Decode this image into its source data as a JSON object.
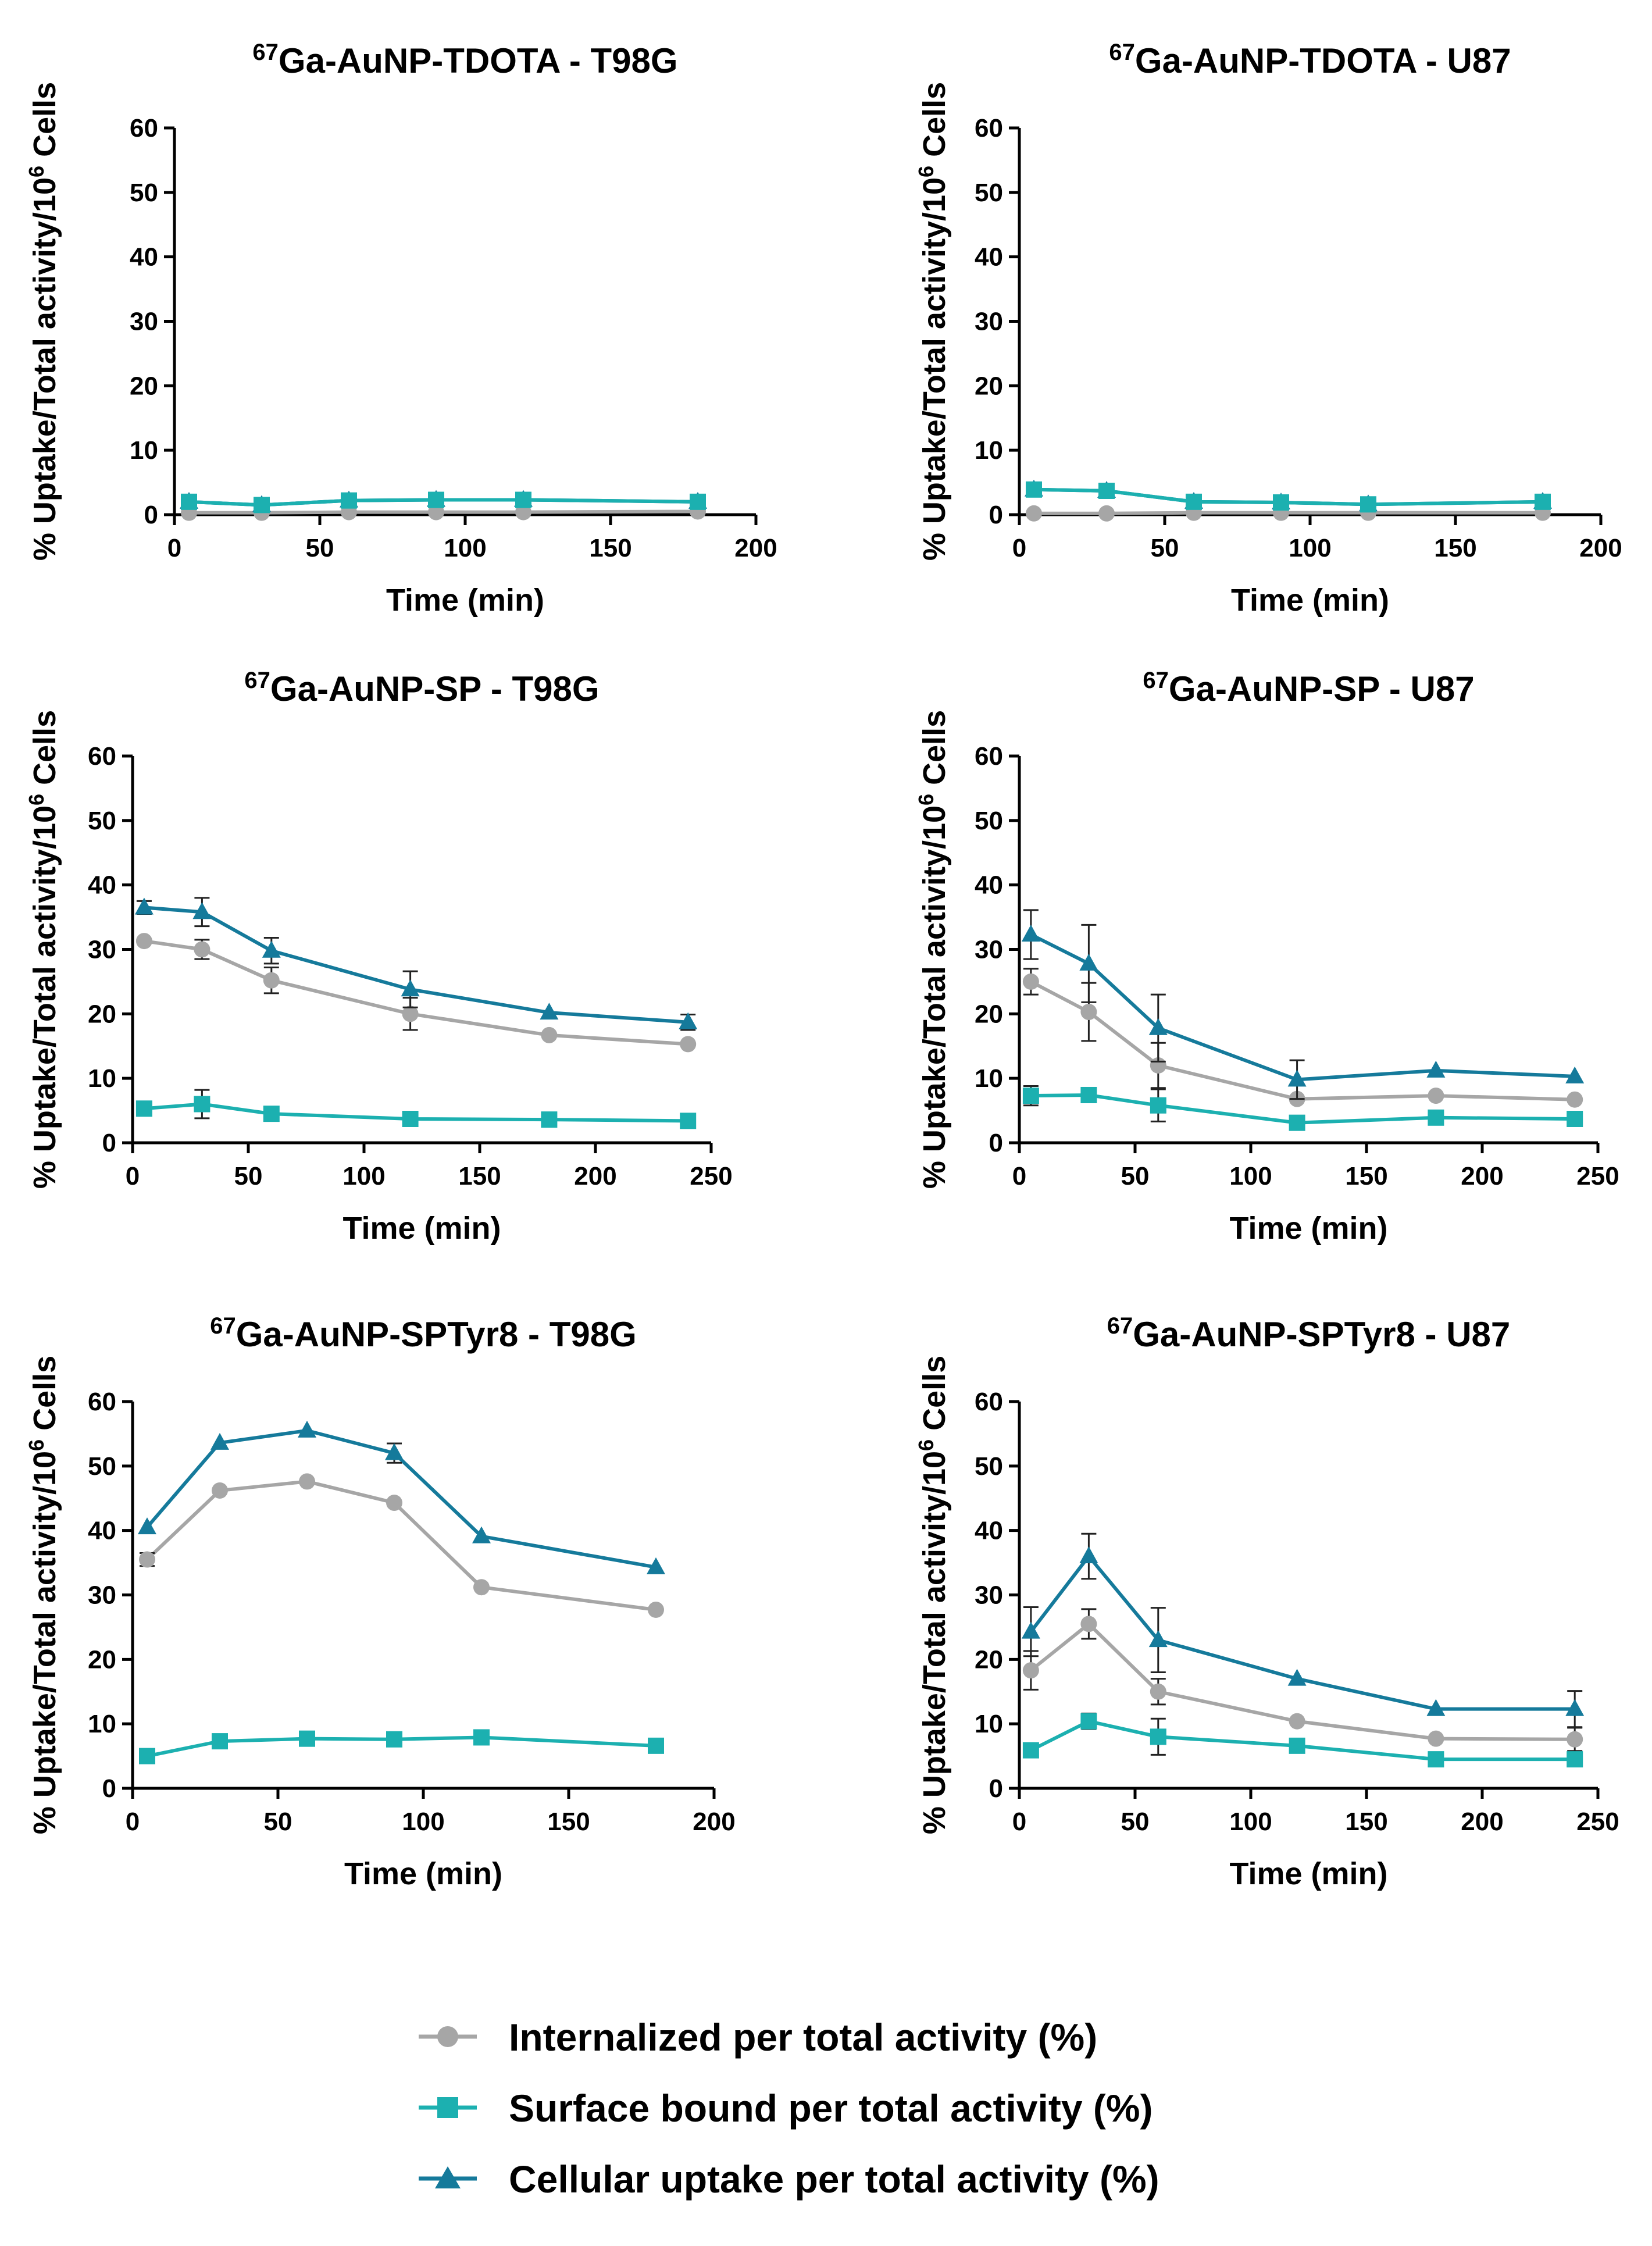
{
  "legend": [
    {
      "key": "internalized",
      "label": "Internalized per total activity (%)",
      "color": "#a6a6a6",
      "marker": "circle"
    },
    {
      "key": "surface",
      "label": "Surface bound per total activity (%)",
      "color": "#1cb0b0",
      "marker": "square"
    },
    {
      "key": "cellular",
      "label": "Cellular uptake per total activity (%)",
      "color": "#157a9b",
      "marker": "triangle"
    }
  ],
  "chart_data": [
    {
      "type": "line",
      "title_sup": "67",
      "title": "Ga-AuNP-TDOTA - T98G",
      "xlabel": "Time (min)",
      "ylabel": "% Uptake/Total activity/10",
      "ylabel_sup": "6",
      "ylabel_suffix": " Cells",
      "xlim": [
        0,
        200
      ],
      "xticks": [
        0,
        50,
        100,
        150,
        200
      ],
      "ylim": [
        0,
        60
      ],
      "yticks": [
        0,
        10,
        20,
        30,
        40,
        50,
        60
      ],
      "x": [
        5,
        30,
        60,
        90,
        120,
        180
      ],
      "series": [
        {
          "name": "Internalized per total activity (%)",
          "values": [
            0.3,
            0.3,
            0.4,
            0.4,
            0.4,
            0.5
          ],
          "errors": [
            0,
            0,
            0,
            0,
            0,
            0
          ]
        },
        {
          "name": "Cellular uptake per total activity (%)",
          "values": [
            2.0,
            1.5,
            2.2,
            2.3,
            2.3,
            2.0
          ],
          "errors": [
            0,
            0,
            0,
            0,
            0,
            0
          ]
        },
        {
          "name": "Surface bound per total activity (%)",
          "values": [
            2.0,
            1.5,
            2.2,
            2.3,
            2.3,
            2.0
          ],
          "errors": [
            0,
            0,
            0,
            0,
            0,
            0
          ]
        }
      ]
    },
    {
      "type": "line",
      "title_sup": "67",
      "title": "Ga-AuNP-TDOTA - U87",
      "xlabel": "Time (min)",
      "ylabel": "% Uptake/Total activity/10",
      "ylabel_sup": "6",
      "ylabel_suffix": " Cells",
      "xlim": [
        0,
        200
      ],
      "xticks": [
        0,
        50,
        100,
        150,
        200
      ],
      "ylim": [
        0,
        60
      ],
      "yticks": [
        0,
        10,
        20,
        30,
        40,
        50,
        60
      ],
      "x": [
        5,
        30,
        60,
        90,
        120,
        180
      ],
      "series": [
        {
          "name": "Internalized per total activity (%)",
          "values": [
            0.2,
            0.2,
            0.3,
            0.3,
            0.3,
            0.3
          ],
          "errors": [
            0,
            0,
            0,
            0,
            0,
            0
          ]
        },
        {
          "name": "Cellular uptake per total activity (%)",
          "values": [
            3.9,
            3.7,
            2.0,
            1.9,
            1.6,
            2.0
          ],
          "errors": [
            0,
            0,
            0,
            0,
            0,
            0
          ]
        },
        {
          "name": "Surface bound per total activity (%)",
          "values": [
            3.9,
            3.7,
            2.0,
            1.9,
            1.6,
            2.0
          ],
          "errors": [
            0,
            0,
            0,
            0,
            0,
            0
          ]
        }
      ]
    },
    {
      "type": "line",
      "title_sup": "67",
      "title": "Ga-AuNP-SP - T98G",
      "xlabel": "Time (min)",
      "ylabel": "% Uptake/Total activity/10",
      "ylabel_sup": "6",
      "ylabel_suffix": " Cells",
      "xlim": [
        0,
        250
      ],
      "xticks": [
        0,
        50,
        100,
        150,
        200,
        250
      ],
      "ylim": [
        0,
        60
      ],
      "yticks": [
        0,
        10,
        20,
        30,
        40,
        50,
        60
      ],
      "x": [
        5,
        30,
        60,
        120,
        180,
        240
      ],
      "series": [
        {
          "name": "Internalized per total activity (%)",
          "values": [
            31.3,
            30.0,
            25.2,
            20.0,
            16.7,
            15.3
          ],
          "errors": [
            0,
            1.5,
            2.0,
            2.5,
            0,
            0
          ]
        },
        {
          "name": "Cellular uptake per total activity (%)",
          "values": [
            36.5,
            35.8,
            29.8,
            23.8,
            20.2,
            18.7
          ],
          "errors": [
            1.0,
            2.2,
            2.0,
            2.8,
            0,
            1.2
          ]
        },
        {
          "name": "Surface bound per total activity (%)",
          "values": [
            5.3,
            6.0,
            4.5,
            3.7,
            3.6,
            3.4
          ],
          "errors": [
            0,
            2.2,
            0,
            0,
            0,
            0
          ]
        }
      ]
    },
    {
      "type": "line",
      "title_sup": "67",
      "title": "Ga-AuNP-SP - U87",
      "xlabel": "Time (min)",
      "ylabel": "% Uptake/Total activity/10",
      "ylabel_sup": "6",
      "ylabel_suffix": " Cells",
      "xlim": [
        0,
        250
      ],
      "xticks": [
        0,
        50,
        100,
        150,
        200,
        250
      ],
      "ylim": [
        0,
        60
      ],
      "yticks": [
        0,
        10,
        20,
        30,
        40,
        50,
        60
      ],
      "x": [
        5,
        30,
        60,
        120,
        180,
        240
      ],
      "series": [
        {
          "name": "Internalized per total activity (%)",
          "values": [
            25.0,
            20.3,
            12.0,
            6.8,
            7.3,
            6.7
          ],
          "errors": [
            2.0,
            4.5,
            3.5,
            0,
            0,
            0
          ]
        },
        {
          "name": "Cellular uptake per total activity (%)",
          "values": [
            32.3,
            27.8,
            17.8,
            9.8,
            11.2,
            10.3
          ],
          "errors": [
            3.8,
            6.0,
            5.2,
            3.0,
            0,
            0
          ]
        },
        {
          "name": "Surface bound per total activity (%)",
          "values": [
            7.3,
            7.4,
            5.8,
            3.1,
            3.9,
            3.7
          ],
          "errors": [
            1.5,
            0,
            2.5,
            0,
            0,
            0
          ]
        }
      ]
    },
    {
      "type": "line",
      "title_sup": "67",
      "title": "Ga-AuNP-SPTyr8 - T98G",
      "xlabel": "Time (min)",
      "ylabel": "% Uptake/Total activity/10",
      "ylabel_sup": "6",
      "ylabel_suffix": " Cells",
      "xlim": [
        0,
        200
      ],
      "xticks": [
        0,
        50,
        100,
        150,
        200
      ],
      "ylim": [
        0,
        60
      ],
      "yticks": [
        0,
        10,
        20,
        30,
        40,
        50,
        60
      ],
      "x": [
        5,
        30,
        60,
        90,
        120,
        180
      ],
      "series": [
        {
          "name": "Internalized per total activity (%)",
          "values": [
            35.5,
            46.2,
            47.6,
            44.3,
            31.2,
            27.7
          ],
          "errors": [
            1.0,
            0,
            0,
            0,
            0,
            0
          ]
        },
        {
          "name": "Cellular uptake per total activity (%)",
          "values": [
            40.5,
            53.6,
            55.5,
            52.0,
            39.1,
            34.3
          ],
          "errors": [
            0,
            0,
            0,
            1.5,
            0,
            0
          ]
        },
        {
          "name": "Surface bound per total activity (%)",
          "values": [
            5.0,
            7.3,
            7.7,
            7.6,
            7.9,
            6.6
          ],
          "errors": [
            0,
            0,
            0,
            0,
            0,
            0
          ]
        }
      ]
    },
    {
      "type": "line",
      "title_sup": "67",
      "title": "Ga-AuNP-SPTyr8 - U87",
      "xlabel": "Time (min)",
      "ylabel": "% Uptake/Total activity/10",
      "ylabel_sup": "6",
      "ylabel_suffix": " Cells",
      "xlim": [
        0,
        250
      ],
      "xticks": [
        0,
        50,
        100,
        150,
        200,
        250
      ],
      "ylim": [
        0,
        60
      ],
      "yticks": [
        0,
        10,
        20,
        30,
        40,
        50,
        60
      ],
      "x": [
        5,
        30,
        60,
        120,
        180,
        240
      ],
      "series": [
        {
          "name": "Internalized per total activity (%)",
          "values": [
            18.3,
            25.5,
            15.0,
            10.4,
            7.7,
            7.6
          ],
          "errors": [
            3.0,
            2.3,
            2.0,
            0,
            0,
            1.8
          ]
        },
        {
          "name": "Cellular uptake per total activity (%)",
          "values": [
            24.3,
            36.0,
            23.0,
            17.0,
            12.3,
            12.3
          ],
          "errors": [
            3.8,
            3.5,
            5.0,
            0,
            0,
            2.8
          ]
        },
        {
          "name": "Surface bound per total activity (%)",
          "values": [
            5.9,
            10.4,
            8.0,
            6.6,
            4.5,
            4.5
          ],
          "errors": [
            0,
            1.2,
            2.8,
            0,
            0,
            0
          ]
        }
      ]
    }
  ]
}
